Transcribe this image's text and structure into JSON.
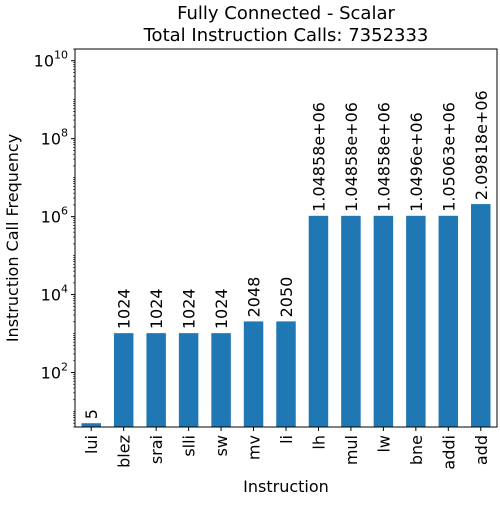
{
  "chart_data": {
    "type": "bar",
    "title": "Fully Connected - Scalar",
    "subtitle": "Total Instruction Calls: 7352333",
    "xlabel": "Instruction",
    "ylabel": "Instruction Call Frequency",
    "yscale": "log",
    "ylim": [
      4,
      20000000000
    ],
    "grid": false,
    "legend": "none",
    "bar_color": "#1f77b4",
    "y_ticks": [
      {
        "value": 100,
        "base": "10",
        "exp": "2"
      },
      {
        "value": 10000,
        "base": "10",
        "exp": "4"
      },
      {
        "value": 1000000,
        "base": "10",
        "exp": "6"
      },
      {
        "value": 100000000,
        "base": "10",
        "exp": "8"
      },
      {
        "value": 10000000000,
        "base": "10",
        "exp": "10"
      }
    ],
    "categories": [
      "lui",
      "blez",
      "srai",
      "slli",
      "sw",
      "mv",
      "li",
      "lh",
      "mul",
      "lw",
      "bne",
      "addi",
      "add"
    ],
    "values": [
      5,
      1024,
      1024,
      1024,
      1024,
      2048,
      2050,
      1048580,
      1048580,
      1048580,
      1049600,
      1050630,
      2098180
    ],
    "value_labels": [
      "5",
      "1024",
      "1024",
      "1024",
      "1024",
      "2048",
      "2050",
      "1.04858e+06",
      "1.04858e+06",
      "1.04858e+06",
      "1.0496e+06",
      "1.05063e+06",
      "2.09818e+06"
    ]
  }
}
